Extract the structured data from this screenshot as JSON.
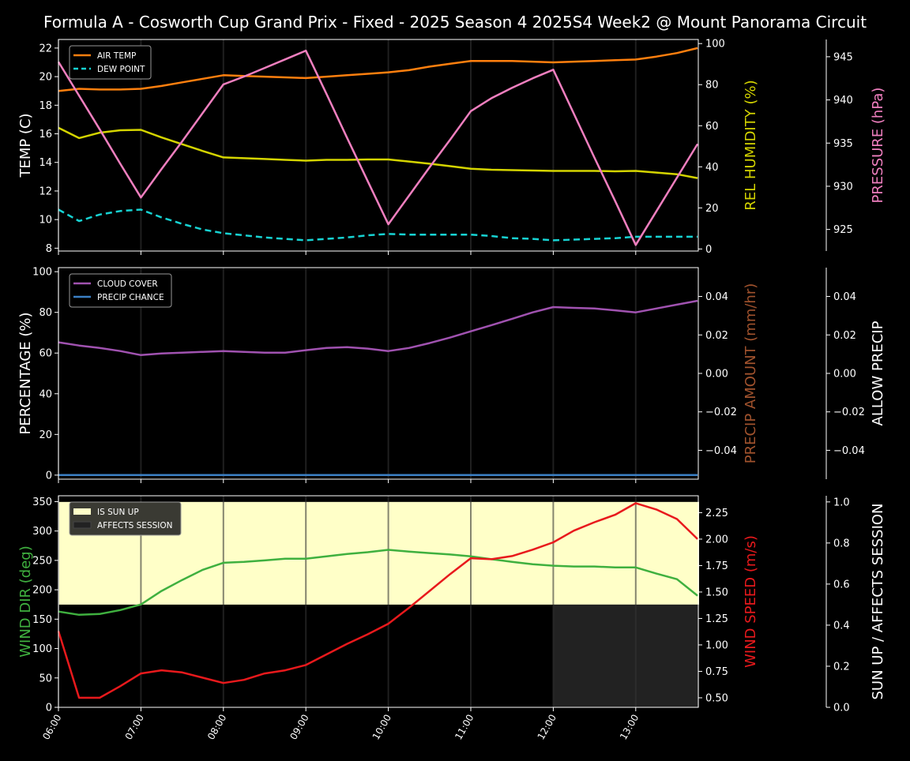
{
  "title": "Formula A - Cosworth Cup Grand Prix - Fixed - 2025 Season 4 2025S4 Week2 @ Mount Panorama Circuit",
  "colors": {
    "background": "#000000",
    "air_temp": "#ff7f0e",
    "dew_point": "#17d3d3",
    "humidity": "#d4d400",
    "pressure": "#f07fbf",
    "cloud": "#a052b0",
    "precip_chance": "#3b7fc4",
    "precip_amount_label": "#a0522d",
    "wind_dir": "#3fb03f",
    "wind_speed": "#e8191c",
    "sun_up": "#ffffc8",
    "affects_session": "#222222"
  },
  "chart_data": [
    {
      "type": "line",
      "x": [
        "06:00",
        "06:15",
        "06:30",
        "06:45",
        "07:00",
        "07:15",
        "07:30",
        "07:45",
        "08:00",
        "08:15",
        "08:30",
        "08:45",
        "09:00",
        "09:15",
        "09:30",
        "09:45",
        "10:00",
        "10:15",
        "10:30",
        "10:45",
        "11:00",
        "11:15",
        "11:30",
        "11:45",
        "12:00",
        "12:15",
        "12:30",
        "12:45",
        "13:00",
        "13:15",
        "13:30",
        "13:45"
      ],
      "xticks": [
        "06:00",
        "07:00",
        "08:00",
        "09:00",
        "10:00",
        "11:00",
        "12:00",
        "13:00"
      ],
      "axes": {
        "left": {
          "label": "TEMP (C)",
          "ylim": [
            7.8,
            22.6
          ],
          "ticks": [
            8,
            10,
            12,
            14,
            16,
            18,
            20,
            22
          ]
        },
        "right": {
          "label": "REL HUMIDITY (%)",
          "ylim": [
            -1,
            102
          ],
          "ticks": [
            0,
            20,
            40,
            60,
            80,
            100
          ]
        },
        "right2": {
          "label": "PRESSURE (hPa)",
          "ylim": [
            922.5,
            947
          ],
          "ticks": [
            925,
            930,
            935,
            940,
            945
          ]
        }
      },
      "legend": "top-left",
      "series": [
        {
          "name": "AIR TEMP",
          "axis": "left",
          "style": "solid",
          "values": [
            19.0,
            19.15,
            19.1,
            19.1,
            19.15,
            19.35,
            19.6,
            19.85,
            20.1,
            20.05,
            20.0,
            19.95,
            19.9,
            20.0,
            20.1,
            20.2,
            20.3,
            20.45,
            20.7,
            20.9,
            21.1,
            21.1,
            21.1,
            21.05,
            21.0,
            21.05,
            21.1,
            21.15,
            21.2,
            21.4,
            21.65,
            22.0
          ]
        },
        {
          "name": "DEW POINT",
          "axis": "left",
          "style": "dashed",
          "values": [
            10.7,
            9.9,
            10.35,
            10.6,
            10.7,
            10.15,
            9.7,
            9.3,
            9.05,
            8.9,
            8.75,
            8.65,
            8.55,
            8.65,
            8.75,
            8.9,
            9.0,
            8.95,
            8.95,
            8.95,
            8.95,
            8.85,
            8.7,
            8.65,
            8.55,
            8.6,
            8.65,
            8.7,
            8.8,
            8.8,
            8.8,
            8.8
          ]
        },
        {
          "axis": "right",
          "style": "solid",
          "color_key": "humidity",
          "values": [
            59,
            54,
            56.6,
            57.8,
            58,
            54.3,
            51,
            47.7,
            44.6,
            44.2,
            43.8,
            43.4,
            43,
            43.4,
            43.4,
            43.6,
            43.6,
            42.6,
            41.5,
            40.3,
            39.1,
            38.6,
            38.4,
            38.2,
            38,
            38,
            38,
            37.8,
            38,
            37.2,
            36.4,
            34.5
          ]
        },
        {
          "axis": "right2",
          "style": "solid",
          "color_key": "pressure",
          "values": [
            944.4,
            940.5,
            936.6,
            932.6,
            928.7,
            932.0,
            935.2,
            938.5,
            941.8,
            942.7,
            943.7,
            944.7,
            945.7,
            940.7,
            935.6,
            930.6,
            925.6,
            928.9,
            932.2,
            935.4,
            938.7,
            940.2,
            941.4,
            942.5,
            943.5,
            938.4,
            933.3,
            928.3,
            923.2,
            927.1,
            931.0,
            934.9
          ]
        }
      ]
    },
    {
      "type": "line",
      "axes": {
        "left": {
          "label": "PERCENTAGE (%)",
          "ylim": [
            -2,
            102
          ],
          "ticks": [
            0,
            20,
            40,
            60,
            80,
            100
          ]
        },
        "right": {
          "label": "PRECIP AMOUNT (mm/hr)",
          "ylim": [
            -0.055,
            0.055
          ],
          "ticks": [
            -0.04,
            -0.02,
            0.0,
            0.02,
            0.04
          ],
          "tick_labels": [
            "−0.04",
            "−0.02",
            "0.00",
            "0.02",
            "0.04"
          ]
        },
        "right2": {
          "label": "ALLOW PRECIP",
          "ylim": [
            -0.055,
            0.055
          ],
          "ticks": [
            -0.04,
            -0.02,
            0.0,
            0.02,
            0.04
          ],
          "tick_labels": [
            "−0.04",
            "−0.02",
            "0.00",
            "0.02",
            "0.04"
          ]
        }
      },
      "legend": "top-left",
      "series": [
        {
          "name": "CLOUD COVER",
          "axis": "left",
          "style": "solid",
          "values": [
            65.3,
            63.7,
            62.5,
            61,
            59,
            59.8,
            60.2,
            60.6,
            61,
            60.6,
            60.2,
            60.2,
            61.4,
            62.5,
            62.9,
            62.2,
            61,
            62.5,
            64.9,
            67.6,
            70.7,
            73.7,
            76.8,
            80,
            82.6,
            82.2,
            81.9,
            81,
            80,
            81.9,
            83.8,
            85.7
          ]
        },
        {
          "name": "PRECIP CHANCE",
          "axis": "left",
          "style": "solid",
          "values": [
            0,
            0,
            0,
            0,
            0,
            0,
            0,
            0,
            0,
            0,
            0,
            0,
            0,
            0,
            0,
            0,
            0,
            0,
            0,
            0,
            0,
            0,
            0,
            0,
            0,
            0,
            0,
            0,
            0,
            0,
            0,
            0
          ]
        }
      ]
    },
    {
      "type": "line",
      "axes": {
        "left": {
          "label": "WIND DIR (deg)",
          "ylim": [
            0,
            360
          ],
          "ticks": [
            0,
            50,
            100,
            150,
            200,
            250,
            300,
            350
          ]
        },
        "right": {
          "label": "WIND SPEED (m/s)",
          "ylim": [
            0.41,
            2.41
          ],
          "ticks": [
            0.5,
            0.75,
            1.0,
            1.25,
            1.5,
            1.75,
            2.0,
            2.25
          ],
          "tick_labels": [
            "0.50",
            "0.75",
            "1.00",
            "1.25",
            "1.50",
            "1.75",
            "2.00",
            "2.25"
          ]
        },
        "right2": {
          "label": "SUN UP / AFFECTS SESSION",
          "ylim": [
            0,
            1.03
          ],
          "ticks": [
            0,
            0.2,
            0.4,
            0.6,
            0.8,
            1.0
          ],
          "tick_labels": [
            "0.0",
            "0.2",
            "0.4",
            "0.6",
            "0.8",
            "1.0"
          ]
        }
      },
      "legend": "top-left",
      "bands": [
        {
          "name": "IS SUN UP",
          "from": "06:00",
          "to": "13:45",
          "range": [
            0.5,
            1.0
          ]
        },
        {
          "name": "AFFECTS SESSION",
          "from": "12:00",
          "to": "13:45",
          "range": [
            0,
            0.5
          ]
        }
      ],
      "series": [
        {
          "axis": "left",
          "color_key": "wind_dir",
          "values": [
            163,
            157.5,
            158.8,
            165.5,
            175,
            198,
            216.7,
            234,
            246,
            247.6,
            250,
            253,
            253,
            257,
            261,
            264,
            268,
            265,
            262.5,
            260,
            257,
            252,
            247.6,
            243.6,
            241,
            239.6,
            239.6,
            238,
            238,
            227.5,
            218,
            190
          ]
        },
        {
          "axis": "right",
          "color_key": "wind_speed",
          "values": [
            1.13,
            0.5,
            0.5,
            0.61,
            0.73,
            0.76,
            0.74,
            0.69,
            0.64,
            0.67,
            0.73,
            0.76,
            0.81,
            0.91,
            1.01,
            1.1,
            1.2,
            1.35,
            1.51,
            1.67,
            1.82,
            1.81,
            1.84,
            1.9,
            1.97,
            2.08,
            2.16,
            2.23,
            2.34,
            2.28,
            2.19,
            2.0
          ]
        }
      ]
    }
  ]
}
